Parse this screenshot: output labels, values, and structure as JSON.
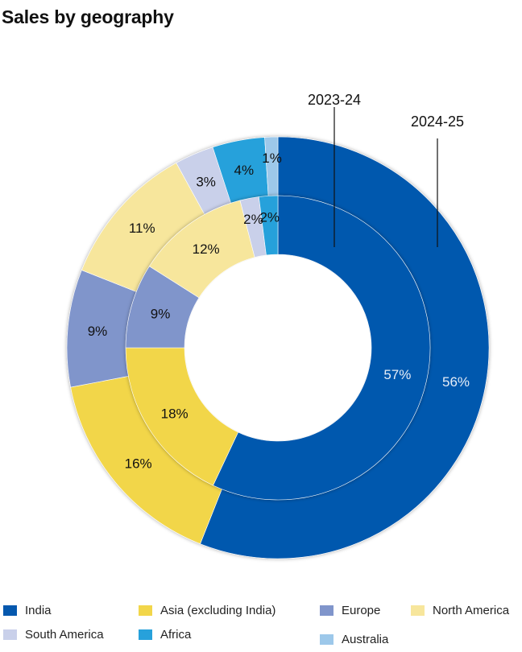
{
  "title": "Sales by geography",
  "chart_data": {
    "type": "donut",
    "title": "Sales by geography",
    "categories": [
      "India",
      "Asia (excluding India)",
      "Europe",
      "North America",
      "South America",
      "Africa",
      "Australia"
    ],
    "colors": [
      "#0558AE",
      "#F2D64A",
      "#8095CB",
      "#F7E69C",
      "#C9D0EA",
      "#27A1DB",
      "#9DC8EA"
    ],
    "series": [
      {
        "name": "2024-25",
        "ring": "outer",
        "values": [
          56,
          16,
          9,
          11,
          3,
          4,
          1
        ],
        "labels": [
          "56%",
          "16%",
          "9%",
          "11%",
          "3%",
          "4%",
          "1%"
        ]
      },
      {
        "name": "2023-24",
        "ring": "inner",
        "values": [
          57,
          18,
          9,
          12,
          2,
          2,
          0
        ],
        "labels": [
          "57%",
          "18%",
          "9%",
          "12%",
          "2%",
          "2%",
          ""
        ]
      }
    ]
  },
  "legend": {
    "items": [
      {
        "label": "India",
        "color": "#0558AE"
      },
      {
        "label": "Asia (excluding India)",
        "color": "#F2D64A"
      },
      {
        "label": "Europe",
        "color": "#8095CB"
      },
      {
        "label": "North America",
        "color": "#F7E69C"
      },
      {
        "label": "South America",
        "color": "#C9D0EA"
      },
      {
        "label": "Africa",
        "color": "#27A1DB"
      },
      {
        "label": "Australia",
        "color": "#9DC8EA"
      }
    ]
  }
}
